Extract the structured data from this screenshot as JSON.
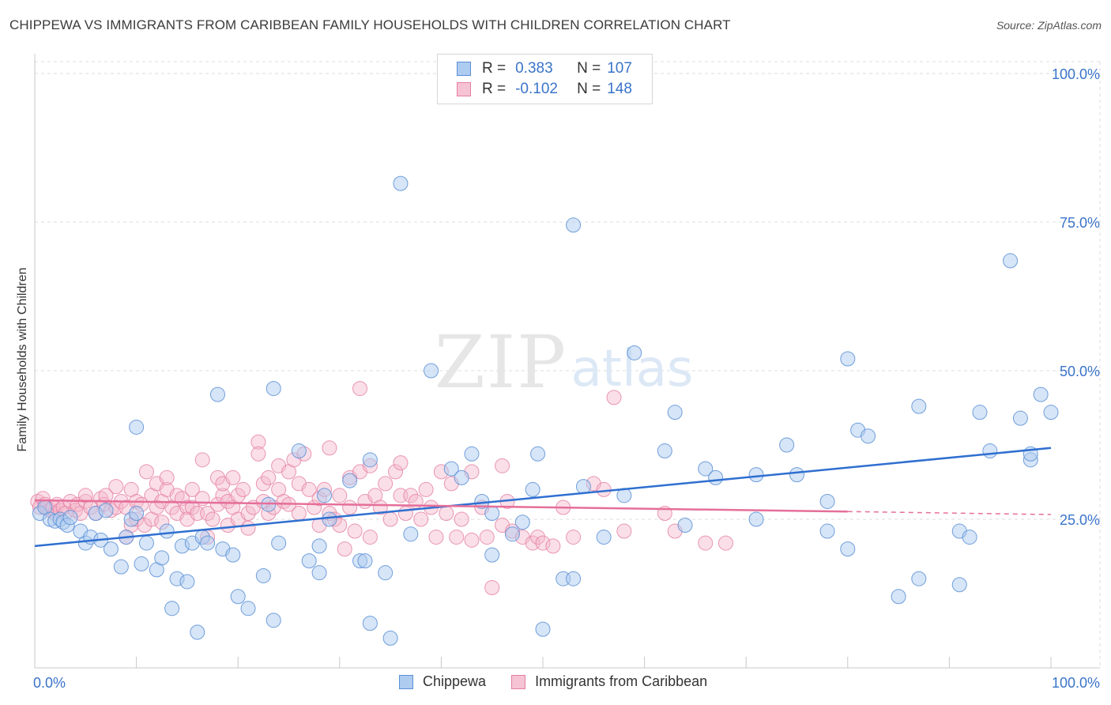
{
  "title": "CHIPPEWA VS IMMIGRANTS FROM CARIBBEAN FAMILY HOUSEHOLDS WITH CHILDREN CORRELATION CHART",
  "source": "Source: ZipAtlas.com",
  "watermark": {
    "zip": "ZIP",
    "atlas": "atlas"
  },
  "legend_top": [
    {
      "r_label": "R =",
      "r_value": "0.383",
      "n_label": "N =",
      "n_value": "107"
    },
    {
      "r_label": "R =",
      "r_value": "-0.102",
      "n_label": "N =",
      "n_value": "148"
    }
  ],
  "legend_bottom": [
    "Chippewa",
    "Immigrants from Caribbean"
  ],
  "colors": {
    "blue_fill": "#aecbf0",
    "blue_stroke": "#5b8fd6",
    "blue_line": "#2f6fd0",
    "pink_fill": "#f5b8cc",
    "pink_stroke": "#e57ea0",
    "pink_line": "#e56f9a",
    "axis_text": "#3a74c9",
    "grid": "#dddddd"
  },
  "chart_data": {
    "type": "scatter",
    "title": "CHIPPEWA VS IMMIGRANTS FROM CARIBBEAN FAMILY HOUSEHOLDS WITH CHILDREN CORRELATION CHART",
    "xlabel": "",
    "ylabel": "Family Households with Children",
    "xlim": [
      0,
      100
    ],
    "ylim": [
      0,
      102
    ],
    "x_tick_labels": [
      "0.0%",
      "100.0%"
    ],
    "y_tick_labels": [
      "25.0%",
      "50.0%",
      "75.0%",
      "100.0%"
    ],
    "y_ticks": [
      25,
      50,
      75,
      100
    ],
    "series": [
      {
        "name": "Chippewa",
        "r": 0.383,
        "n": 107,
        "trend": {
          "x": [
            0,
            100
          ],
          "y": [
            20.5,
            37.0
          ],
          "dashed_from": null
        },
        "points": [
          [
            0.5,
            26
          ],
          [
            1,
            27
          ],
          [
            1.5,
            25
          ],
          [
            2,
            24.7
          ],
          [
            2.5,
            25
          ],
          [
            2.8,
            24.5
          ],
          [
            3.2,
            24
          ],
          [
            3.5,
            25.3
          ],
          [
            4.5,
            23
          ],
          [
            5,
            21
          ],
          [
            5.5,
            22
          ],
          [
            6,
            26
          ],
          [
            6.5,
            21.5
          ],
          [
            7,
            26.5
          ],
          [
            7.5,
            20
          ],
          [
            8.5,
            17
          ],
          [
            9,
            22
          ],
          [
            9.5,
            25
          ],
          [
            10,
            26
          ],
          [
            10,
            40.5
          ],
          [
            10.5,
            17.5
          ],
          [
            11,
            21
          ],
          [
            12,
            16.5
          ],
          [
            12.5,
            18.5
          ],
          [
            13,
            23
          ],
          [
            13.5,
            10
          ],
          [
            14,
            15
          ],
          [
            14.5,
            20.5
          ],
          [
            15,
            14.5
          ],
          [
            15.5,
            21
          ],
          [
            16,
            6
          ],
          [
            16.5,
            22
          ],
          [
            17,
            21
          ],
          [
            18,
            46
          ],
          [
            18.5,
            20
          ],
          [
            19.5,
            19
          ],
          [
            20,
            12
          ],
          [
            21,
            10
          ],
          [
            22.5,
            15.5
          ],
          [
            23,
            27.5
          ],
          [
            23.5,
            8
          ],
          [
            23.5,
            47
          ],
          [
            24,
            21
          ],
          [
            26,
            36.5
          ],
          [
            27,
            18
          ],
          [
            28,
            20.5
          ],
          [
            28,
            16
          ],
          [
            28.5,
            29
          ],
          [
            29,
            25
          ],
          [
            31,
            31.5
          ],
          [
            32,
            18
          ],
          [
            32.5,
            18
          ],
          [
            33,
            7.5
          ],
          [
            33,
            35
          ],
          [
            34.5,
            16
          ],
          [
            35,
            5
          ],
          [
            36,
            81.5
          ],
          [
            37,
            22.5
          ],
          [
            39,
            50
          ],
          [
            41,
            33.5
          ],
          [
            42,
            32
          ],
          [
            43,
            36
          ],
          [
            44,
            28
          ],
          [
            45,
            19
          ],
          [
            45,
            26
          ],
          [
            47,
            22.5
          ],
          [
            48,
            24.5
          ],
          [
            49,
            30
          ],
          [
            49.5,
            36
          ],
          [
            50,
            6.5
          ],
          [
            52,
            15
          ],
          [
            53,
            15
          ],
          [
            53,
            74.5
          ],
          [
            54,
            30.5
          ],
          [
            56,
            22
          ],
          [
            58,
            29
          ],
          [
            59,
            53
          ],
          [
            62,
            36.5
          ],
          [
            63,
            43
          ],
          [
            64,
            24
          ],
          [
            66,
            33.5
          ],
          [
            67,
            32
          ],
          [
            71,
            25
          ],
          [
            71,
            32.5
          ],
          [
            74,
            37.5
          ],
          [
            75,
            32.5
          ],
          [
            78,
            28
          ],
          [
            78,
            23
          ],
          [
            80,
            20
          ],
          [
            80,
            52
          ],
          [
            81,
            40
          ],
          [
            82,
            39
          ],
          [
            85,
            12
          ],
          [
            87,
            15
          ],
          [
            87,
            44
          ],
          [
            91,
            23
          ],
          [
            91,
            14
          ],
          [
            92,
            22
          ],
          [
            93,
            43
          ],
          [
            94,
            36.5
          ],
          [
            96,
            68.5
          ],
          [
            97,
            42
          ],
          [
            98,
            35
          ],
          [
            98,
            36
          ],
          [
            99,
            46
          ],
          [
            100,
            43
          ]
        ]
      },
      {
        "name": "Immigrants from Caribbean",
        "r": -0.102,
        "n": 148,
        "trend": {
          "x": [
            0,
            80,
            100
          ],
          "y": [
            28.2,
            26.3,
            25.8
          ],
          "dashed_from": 80
        },
        "points": [
          [
            0.3,
            28
          ],
          [
            0.5,
            27
          ],
          [
            0.8,
            28.5
          ],
          [
            1,
            27.5
          ],
          [
            1.2,
            27
          ],
          [
            1.5,
            26.5
          ],
          [
            1.8,
            27
          ],
          [
            2,
            26
          ],
          [
            2.2,
            27.5
          ],
          [
            2.5,
            26.5
          ],
          [
            2.8,
            27
          ],
          [
            3,
            26
          ],
          [
            3.5,
            28
          ],
          [
            4,
            26.5
          ],
          [
            4.2,
            27.5
          ],
          [
            4.5,
            26
          ],
          [
            5,
            28
          ],
          [
            5,
            29
          ],
          [
            5.5,
            27
          ],
          [
            6,
            26
          ],
          [
            6.5,
            28.5
          ],
          [
            6.8,
            27.5
          ],
          [
            7,
            29
          ],
          [
            7.5,
            26.5
          ],
          [
            8,
            27
          ],
          [
            8,
            30.5
          ],
          [
            8.5,
            28
          ],
          [
            9,
            27
          ],
          [
            9,
            22
          ],
          [
            9.5,
            24
          ],
          [
            9.5,
            30
          ],
          [
            10,
            28
          ],
          [
            10,
            25
          ],
          [
            10.5,
            27.5
          ],
          [
            10.8,
            24
          ],
          [
            11,
            33
          ],
          [
            11.5,
            29
          ],
          [
            11.5,
            25
          ],
          [
            12,
            27
          ],
          [
            12,
            31
          ],
          [
            12.5,
            28
          ],
          [
            12.5,
            24.5
          ],
          [
            13,
            30
          ],
          [
            13,
            32
          ],
          [
            13.5,
            27
          ],
          [
            14,
            29
          ],
          [
            14,
            26
          ],
          [
            14.5,
            28.5
          ],
          [
            15,
            27
          ],
          [
            15,
            25
          ],
          [
            15.5,
            27
          ],
          [
            15.5,
            30
          ],
          [
            16,
            26
          ],
          [
            16.5,
            28.5
          ],
          [
            16.5,
            35
          ],
          [
            17,
            26
          ],
          [
            17,
            22
          ],
          [
            17.5,
            25
          ],
          [
            18,
            27.5
          ],
          [
            18,
            32
          ],
          [
            18.5,
            29
          ],
          [
            18.5,
            31
          ],
          [
            19,
            28
          ],
          [
            19,
            24
          ],
          [
            19.5,
            27
          ],
          [
            19.5,
            32
          ],
          [
            20,
            29
          ],
          [
            20,
            25
          ],
          [
            20.5,
            30
          ],
          [
            21,
            26
          ],
          [
            21,
            23.5
          ],
          [
            21.5,
            27
          ],
          [
            22,
            38
          ],
          [
            22,
            36
          ],
          [
            22.5,
            28
          ],
          [
            22.5,
            31
          ],
          [
            23,
            26
          ],
          [
            23,
            32
          ],
          [
            23.5,
            27
          ],
          [
            24,
            34
          ],
          [
            24,
            30
          ],
          [
            24.5,
            28
          ],
          [
            25,
            33
          ],
          [
            25,
            27.5
          ],
          [
            25.5,
            35
          ],
          [
            26,
            26
          ],
          [
            26,
            31
          ],
          [
            26.5,
            36
          ],
          [
            27,
            30
          ],
          [
            27.5,
            27
          ],
          [
            28,
            28.5
          ],
          [
            28,
            24
          ],
          [
            28.5,
            30
          ],
          [
            29,
            37
          ],
          [
            29,
            26
          ],
          [
            29.5,
            25
          ],
          [
            30,
            24
          ],
          [
            30,
            29
          ],
          [
            30.5,
            20
          ],
          [
            31,
            32
          ],
          [
            31,
            27
          ],
          [
            31.5,
            23
          ],
          [
            32,
            33
          ],
          [
            32,
            47
          ],
          [
            32.5,
            28
          ],
          [
            33,
            22
          ],
          [
            33,
            34
          ],
          [
            33.5,
            29
          ],
          [
            34,
            27
          ],
          [
            34.5,
            31
          ],
          [
            35,
            25
          ],
          [
            35.5,
            33
          ],
          [
            36,
            29
          ],
          [
            36,
            34.5
          ],
          [
            36.5,
            26
          ],
          [
            37,
            29
          ],
          [
            37.5,
            28
          ],
          [
            38,
            25
          ],
          [
            38.5,
            30
          ],
          [
            39,
            27
          ],
          [
            39.5,
            22
          ],
          [
            40,
            33
          ],
          [
            40.5,
            26
          ],
          [
            41,
            31
          ],
          [
            41.5,
            22
          ],
          [
            42,
            25
          ],
          [
            43,
            21.5
          ],
          [
            43,
            33
          ],
          [
            44,
            27
          ],
          [
            44.5,
            22
          ],
          [
            45,
            13.5
          ],
          [
            46,
            34
          ],
          [
            46,
            24
          ],
          [
            46.5,
            28
          ],
          [
            47,
            23
          ],
          [
            48,
            22
          ],
          [
            49,
            21
          ],
          [
            49.5,
            22
          ],
          [
            50,
            21
          ],
          [
            51,
            20.5
          ],
          [
            52,
            27
          ],
          [
            53,
            22
          ],
          [
            55,
            31
          ],
          [
            56,
            30
          ],
          [
            57,
            45.5
          ],
          [
            58,
            23
          ],
          [
            62,
            26
          ],
          [
            63,
            23
          ],
          [
            66,
            21
          ],
          [
            68,
            21
          ]
        ]
      }
    ]
  }
}
